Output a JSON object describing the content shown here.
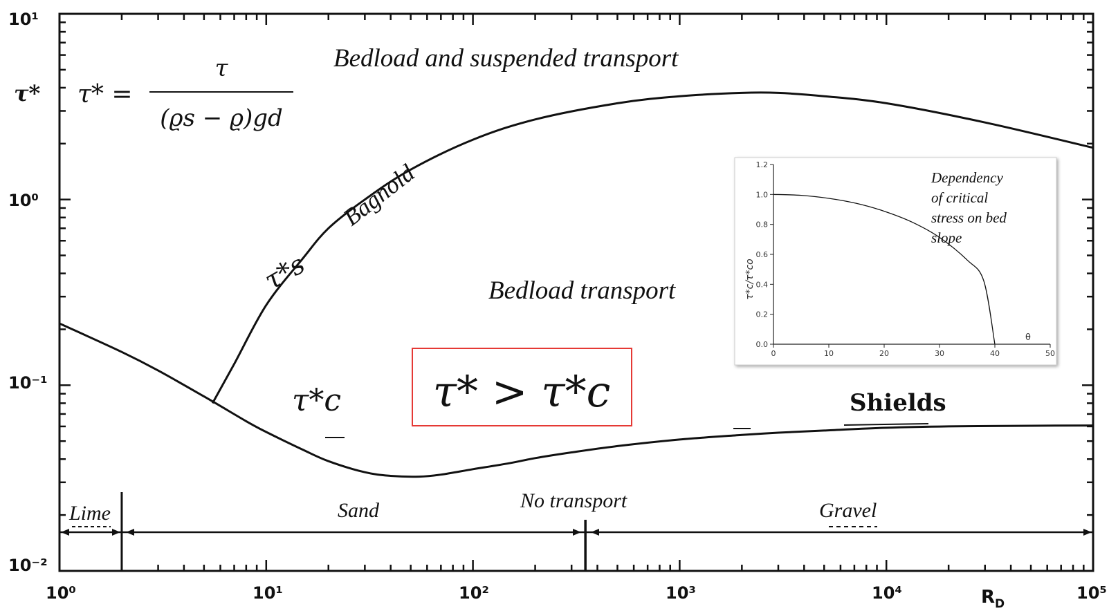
{
  "chart_data": [
    {
      "type": "line",
      "x_scale": "log",
      "y_scale": "log",
      "xlim": [
        1,
        100000
      ],
      "ylim": [
        0.01,
        10
      ],
      "x_tick_labels": [
        "10⁰",
        "10¹",
        "10²",
        "10³",
        "10⁴",
        "10⁵"
      ],
      "y_tick_labels": [
        "10¹",
        "10⁰",
        "10⁻¹",
        "10⁻²"
      ],
      "ylabel": "τ*",
      "xlabel": "R",
      "xlabel_sub": "D",
      "formula": {
        "lhs": "τ* =",
        "numerator": "τ",
        "denominator": "(ϱs − ϱ)gd"
      },
      "series": [
        {
          "name": "Shields",
          "label": "τ*c",
          "x": [
            1,
            2,
            3,
            5,
            8,
            10,
            15,
            20,
            30,
            40,
            55,
            70,
            100,
            150,
            200,
            300,
            500,
            1000,
            2000,
            3000,
            5000,
            10000,
            20000,
            50000,
            100000
          ],
          "y": [
            0.215,
            0.151,
            0.12,
            0.087,
            0.064,
            0.056,
            0.045,
            0.039,
            0.034,
            0.0325,
            0.0322,
            0.033,
            0.0353,
            0.038,
            0.0405,
            0.0435,
            0.047,
            0.051,
            0.054,
            0.0555,
            0.057,
            0.059,
            0.06,
            0.0605,
            0.0607
          ]
        },
        {
          "name": "Bagnold",
          "label": "τ*s",
          "x": [
            5.5,
            7,
            10,
            15,
            20,
            30,
            50,
            100,
            200,
            500,
            1000,
            2000,
            3000,
            5000,
            10000,
            30000,
            100000
          ],
          "y": [
            0.08,
            0.13,
            0.27,
            0.48,
            0.7,
            1.0,
            1.45,
            2.1,
            2.7,
            3.3,
            3.6,
            3.75,
            3.75,
            3.6,
            3.3,
            2.6,
            1.9
          ]
        }
      ],
      "annotations": {
        "region_top": "Bedload and suspended transport",
        "region_mid": "Bedload transport",
        "bagnold": "Bagnold",
        "shields": "Shields",
        "criterion": "τ* > τ*c",
        "no_transport": "No transport",
        "lime": "Lime",
        "sand": "Sand",
        "gravel": "Gravel"
      },
      "dividers_x": [
        2,
        350
      ],
      "accent_color": "#e53935"
    },
    {
      "type": "line",
      "xlim": [
        0,
        50
      ],
      "ylim": [
        0,
        1.2
      ],
      "x_ticks": [
        0,
        10,
        20,
        30,
        40,
        50
      ],
      "y_ticks": [
        0.0,
        0.2,
        0.4,
        0.6,
        0.8,
        1.0,
        1.2
      ],
      "x_tick_labels": [
        "0",
        "10",
        "20",
        "30",
        "40",
        "50"
      ],
      "y_tick_labels": [
        "0.0",
        "0.2",
        "0.4",
        "0.6",
        "0.8",
        "1.0",
        "1.2"
      ],
      "xlabel": "θ",
      "ylabel": "τ*c/τ*co",
      "annotation": [
        "Dependency",
        "of critical",
        "stress on bed",
        "slope"
      ],
      "series": [
        {
          "x": [
            0,
            5,
            10,
            15,
            20,
            25,
            30,
            35,
            38,
            40
          ],
          "y": [
            1.0,
            0.994,
            0.974,
            0.94,
            0.888,
            0.816,
            0.713,
            0.562,
            0.423,
            0.0
          ]
        }
      ]
    }
  ]
}
